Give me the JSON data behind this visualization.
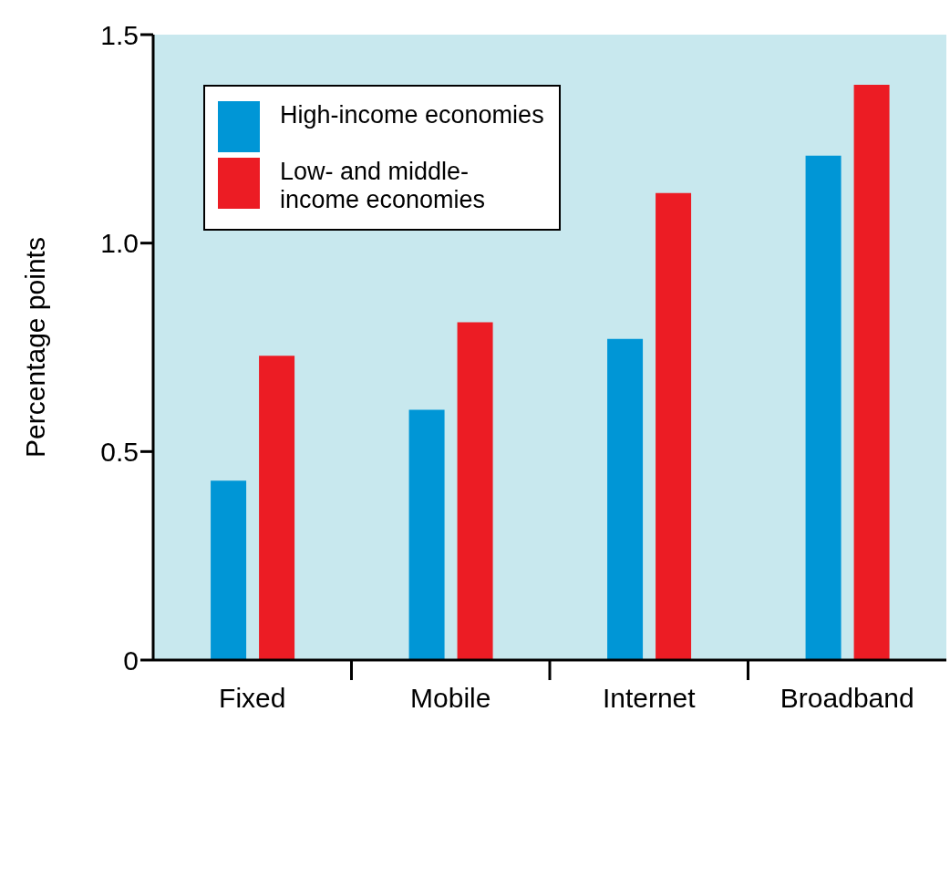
{
  "chart_data": {
    "type": "bar",
    "ylabel": "Percentage points",
    "categories": [
      "Fixed",
      "Mobile",
      "Internet",
      "Broadband"
    ],
    "series": [
      {
        "name": "High-income economies",
        "color": "#0096d6",
        "values": [
          0.43,
          0.6,
          0.77,
          1.21
        ]
      },
      {
        "name": "Low- and middle-income economies",
        "color": "#ec1c24",
        "values": [
          0.73,
          0.81,
          1.12,
          1.38
        ]
      }
    ],
    "ylim": [
      0,
      1.5
    ],
    "yticks": [
      0,
      0.5,
      {
        "value": 1,
        "label": "1.0"
      },
      1.5
    ],
    "legend": "top left"
  }
}
